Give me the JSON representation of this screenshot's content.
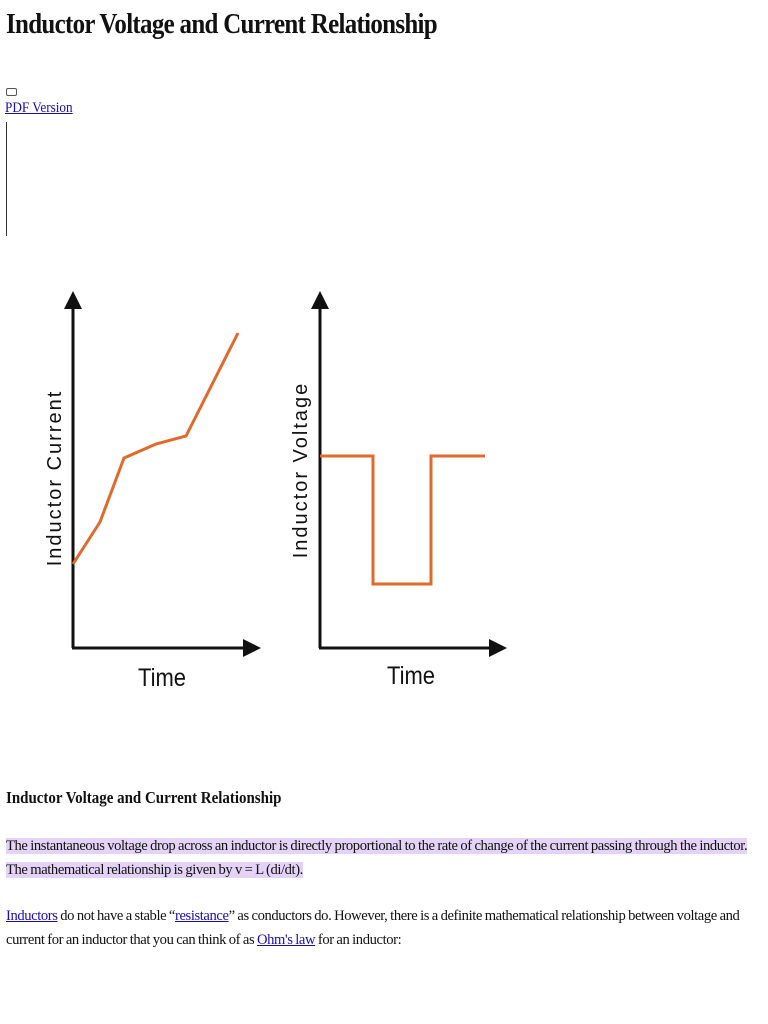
{
  "page": {
    "title": "Inductor Voltage and Current Relationship",
    "pdf_link": "PDF Version",
    "section_heading": "Inductor Voltage and Current Relationship"
  },
  "figure": {
    "left_chart": {
      "ylabel": "Inductor Current",
      "xlabel": "Time"
    },
    "right_chart": {
      "ylabel": "Inductor Voltage",
      "xlabel": "Time"
    },
    "line_color": "#e06a2c",
    "axis_color": "#111111"
  },
  "paragraph1": {
    "text": "The instantaneous voltage drop across an inductor is directly proportional to the rate of change of the current passing through the inductor. The mathematical relationship is given by v = L (di/dt).",
    "highlight_color": "#e4d3f6"
  },
  "paragraph2": {
    "link_inductors": "Inductors",
    "t1": " do not have a stable “",
    "link_resistance": "resistance",
    "t2": "” as conductors do. However, there is a definite mathematical relationship between voltage and current for an inductor that you can think of as ",
    "link_ohms_law": "Ohm's law",
    "t3": " for an inductor:"
  }
}
